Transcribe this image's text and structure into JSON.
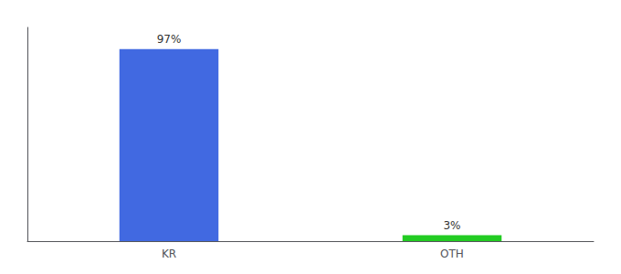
{
  "chart_data": {
    "type": "bar",
    "categories": [
      "KR",
      "OTH"
    ],
    "values": [
      97,
      3
    ],
    "value_labels": [
      "97%",
      "3%"
    ],
    "colors": [
      "#4169e1",
      "#22cc22"
    ],
    "ylim": [
      0,
      108
    ],
    "grid": false,
    "data_labels": true,
    "tick_labels": "x"
  }
}
